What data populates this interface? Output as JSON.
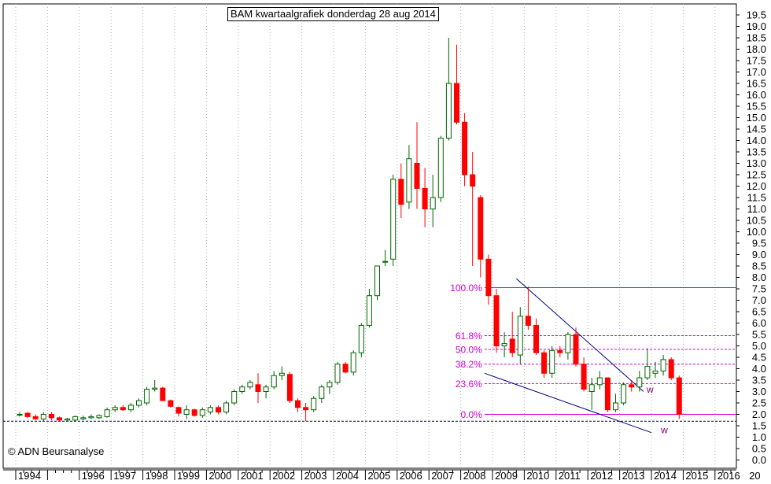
{
  "chart_data": {
    "type": "candlestick",
    "title": "BAM kwartaalgrafiek donderdag 28 aug 2014",
    "copyright": "© ADN Beursanalyse",
    "ylim": [
      0,
      19.5
    ],
    "y_ticks": [
      "0.0",
      "0.5",
      "1.0",
      "1.5",
      "2.0",
      "2.5",
      "3.0",
      "3.5",
      "4.0",
      "4.5",
      "5.0",
      "5.5",
      "6.0",
      "6.5",
      "7.0",
      "7.5",
      "8.0",
      "8.5",
      "9.0",
      "9.5",
      "10.0",
      "10.5",
      "11.0",
      "11.5",
      "12.0",
      "12.5",
      "13.0",
      "13.5",
      "14.0",
      "14.5",
      "15.0",
      "15.5",
      "16.0",
      "16.5",
      "17.0",
      "17.5",
      "18.0",
      "18.5",
      "19.0",
      "19.5"
    ],
    "x_ticks": [
      "1994",
      "1996",
      "1997",
      "1998",
      "1999",
      "2000",
      "2001",
      "2002",
      "2003",
      "2004",
      "2005",
      "2006",
      "2007",
      "2008",
      "2009",
      "2010",
      "2011",
      "2012",
      "2013",
      "2014",
      "2015",
      "2016",
      "20"
    ],
    "grid": true,
    "candle_colors": {
      "up": "#ffffff",
      "down": "#ff0000",
      "outline_up": "#006400",
      "outline_down": "#ff0000"
    },
    "candles": [
      {
        "t": 1994.0,
        "o": 2.0,
        "h": 2.1,
        "l": 1.9,
        "c": 2.0
      },
      {
        "t": 1994.25,
        "o": 2.05,
        "h": 2.1,
        "l": 1.85,
        "c": 1.9
      },
      {
        "t": 1994.5,
        "o": 1.9,
        "h": 2.0,
        "l": 1.75,
        "c": 1.8
      },
      {
        "t": 1994.75,
        "o": 1.8,
        "h": 2.1,
        "l": 1.7,
        "c": 2.0
      },
      {
        "t": 1995.0,
        "o": 2.0,
        "h": 2.1,
        "l": 1.75,
        "c": 1.85
      },
      {
        "t": 1995.25,
        "o": 1.85,
        "h": 1.9,
        "l": 1.7,
        "c": 1.75
      },
      {
        "t": 1995.5,
        "o": 1.75,
        "h": 1.85,
        "l": 1.7,
        "c": 1.8
      },
      {
        "t": 1995.75,
        "o": 1.75,
        "h": 1.95,
        "l": 1.7,
        "c": 1.9
      },
      {
        "t": 1996.0,
        "o": 1.8,
        "h": 1.95,
        "l": 1.75,
        "c": 1.85
      },
      {
        "t": 1996.25,
        "o": 1.85,
        "h": 2.0,
        "l": 1.8,
        "c": 1.9
      },
      {
        "t": 1996.5,
        "o": 1.85,
        "h": 2.0,
        "l": 1.8,
        "c": 1.95
      },
      {
        "t": 1996.75,
        "o": 1.9,
        "h": 2.3,
        "l": 1.85,
        "c": 2.2
      },
      {
        "t": 1997.0,
        "o": 2.2,
        "h": 2.4,
        "l": 2.1,
        "c": 2.3
      },
      {
        "t": 1997.25,
        "o": 2.3,
        "h": 2.4,
        "l": 2.15,
        "c": 2.2
      },
      {
        "t": 1997.5,
        "o": 2.2,
        "h": 2.5,
        "l": 2.1,
        "c": 2.4
      },
      {
        "t": 1997.75,
        "o": 2.4,
        "h": 2.7,
        "l": 2.3,
        "c": 2.6
      },
      {
        "t": 1998.0,
        "o": 2.5,
        "h": 3.2,
        "l": 2.4,
        "c": 3.1
      },
      {
        "t": 1998.25,
        "o": 3.1,
        "h": 3.5,
        "l": 3.0,
        "c": 3.15
      },
      {
        "t": 1998.5,
        "o": 3.15,
        "h": 3.2,
        "l": 2.6,
        "c": 2.6
      },
      {
        "t": 1998.75,
        "o": 2.6,
        "h": 2.65,
        "l": 2.3,
        "c": 2.35
      },
      {
        "t": 1999.0,
        "o": 2.3,
        "h": 2.35,
        "l": 1.9,
        "c": 2.05
      },
      {
        "t": 1999.25,
        "o": 2.0,
        "h": 2.4,
        "l": 1.8,
        "c": 2.2
      },
      {
        "t": 1999.5,
        "o": 2.2,
        "h": 2.25,
        "l": 1.9,
        "c": 1.95
      },
      {
        "t": 1999.75,
        "o": 1.95,
        "h": 2.3,
        "l": 1.85,
        "c": 2.2
      },
      {
        "t": 2000.0,
        "o": 2.1,
        "h": 2.4,
        "l": 2.0,
        "c": 2.3
      },
      {
        "t": 2000.25,
        "o": 2.3,
        "h": 2.4,
        "l": 2.0,
        "c": 2.1
      },
      {
        "t": 2000.5,
        "o": 2.1,
        "h": 2.6,
        "l": 2.0,
        "c": 2.5
      },
      {
        "t": 2000.75,
        "o": 2.5,
        "h": 3.1,
        "l": 2.4,
        "c": 3.0
      },
      {
        "t": 2001.0,
        "o": 3.0,
        "h": 3.3,
        "l": 2.9,
        "c": 3.2
      },
      {
        "t": 2001.25,
        "o": 3.2,
        "h": 3.5,
        "l": 3.1,
        "c": 3.4
      },
      {
        "t": 2001.5,
        "o": 3.3,
        "h": 3.8,
        "l": 2.5,
        "c": 3.0
      },
      {
        "t": 2001.75,
        "o": 3.0,
        "h": 3.3,
        "l": 2.7,
        "c": 3.2
      },
      {
        "t": 2002.0,
        "o": 3.2,
        "h": 3.9,
        "l": 3.1,
        "c": 3.7
      },
      {
        "t": 2002.25,
        "o": 3.7,
        "h": 4.1,
        "l": 3.5,
        "c": 3.8
      },
      {
        "t": 2002.5,
        "o": 3.75,
        "h": 3.85,
        "l": 2.5,
        "c": 2.6
      },
      {
        "t": 2002.75,
        "o": 2.6,
        "h": 2.7,
        "l": 2.1,
        "c": 2.3
      },
      {
        "t": 2003.0,
        "o": 2.3,
        "h": 2.5,
        "l": 1.7,
        "c": 2.2
      },
      {
        "t": 2003.25,
        "o": 2.2,
        "h": 2.8,
        "l": 2.1,
        "c": 2.7
      },
      {
        "t": 2003.5,
        "o": 2.7,
        "h": 3.3,
        "l": 2.5,
        "c": 3.2
      },
      {
        "t": 2003.75,
        "o": 3.2,
        "h": 3.5,
        "l": 2.9,
        "c": 3.4
      },
      {
        "t": 2004.0,
        "o": 3.4,
        "h": 4.3,
        "l": 3.3,
        "c": 4.2
      },
      {
        "t": 2004.25,
        "o": 4.2,
        "h": 4.3,
        "l": 3.8,
        "c": 3.85
      },
      {
        "t": 2004.5,
        "o": 3.85,
        "h": 4.8,
        "l": 3.7,
        "c": 4.7
      },
      {
        "t": 2004.75,
        "o": 4.7,
        "h": 6.0,
        "l": 4.5,
        "c": 5.9
      },
      {
        "t": 2005.0,
        "o": 5.9,
        "h": 7.5,
        "l": 5.8,
        "c": 7.2
      },
      {
        "t": 2005.25,
        "o": 7.2,
        "h": 8.5,
        "l": 7.0,
        "c": 8.5
      },
      {
        "t": 2005.5,
        "o": 8.7,
        "h": 9.2,
        "l": 8.5,
        "c": 8.7
      },
      {
        "t": 2005.75,
        "o": 8.8,
        "h": 12.5,
        "l": 8.5,
        "c": 12.3
      },
      {
        "t": 2006.0,
        "o": 12.3,
        "h": 13.0,
        "l": 10.6,
        "c": 11.2
      },
      {
        "t": 2006.25,
        "o": 11.3,
        "h": 13.8,
        "l": 11.0,
        "c": 13.2
      },
      {
        "t": 2006.5,
        "o": 13.0,
        "h": 14.8,
        "l": 11.0,
        "c": 11.9
      },
      {
        "t": 2006.75,
        "o": 11.9,
        "h": 12.8,
        "l": 10.2,
        "c": 11.0
      },
      {
        "t": 2007.0,
        "o": 11.0,
        "h": 12.5,
        "l": 10.2,
        "c": 11.5
      },
      {
        "t": 2007.25,
        "o": 11.5,
        "h": 14.2,
        "l": 11.3,
        "c": 14.1
      },
      {
        "t": 2007.5,
        "o": 14.1,
        "h": 18.5,
        "l": 14.0,
        "c": 16.5
      },
      {
        "t": 2007.75,
        "o": 16.5,
        "h": 18.2,
        "l": 14.7,
        "c": 14.8
      },
      {
        "t": 2008.0,
        "o": 14.8,
        "h": 15.2,
        "l": 12.0,
        "c": 12.5
      },
      {
        "t": 2008.25,
        "o": 12.5,
        "h": 13.5,
        "l": 8.5,
        "c": 12.0
      },
      {
        "t": 2008.5,
        "o": 11.5,
        "h": 11.6,
        "l": 8.0,
        "c": 8.8
      },
      {
        "t": 2008.75,
        "o": 8.8,
        "h": 9.0,
        "l": 6.8,
        "c": 7.2
      },
      {
        "t": 2009.0,
        "o": 7.2,
        "h": 7.5,
        "l": 4.7,
        "c": 5.0
      },
      {
        "t": 2009.25,
        "o": 5.0,
        "h": 5.6,
        "l": 4.5,
        "c": 5.1
      },
      {
        "t": 2009.5,
        "o": 5.3,
        "h": 6.5,
        "l": 4.5,
        "c": 4.7
      },
      {
        "t": 2009.75,
        "o": 4.6,
        "h": 6.7,
        "l": 4.2,
        "c": 6.3
      },
      {
        "t": 2010.0,
        "o": 6.3,
        "h": 7.6,
        "l": 5.7,
        "c": 5.9
      },
      {
        "t": 2010.25,
        "o": 5.9,
        "h": 6.2,
        "l": 4.6,
        "c": 4.7
      },
      {
        "t": 2010.5,
        "o": 4.7,
        "h": 4.8,
        "l": 3.6,
        "c": 3.8
      },
      {
        "t": 2010.75,
        "o": 3.8,
        "h": 5.0,
        "l": 3.6,
        "c": 4.8
      },
      {
        "t": 2011.0,
        "o": 4.8,
        "h": 5.0,
        "l": 4.5,
        "c": 4.7
      },
      {
        "t": 2011.25,
        "o": 4.7,
        "h": 5.6,
        "l": 4.4,
        "c": 5.5
      },
      {
        "t": 2011.5,
        "o": 5.5,
        "h": 5.8,
        "l": 4.1,
        "c": 4.2
      },
      {
        "t": 2011.75,
        "o": 4.2,
        "h": 4.5,
        "l": 3.0,
        "c": 3.1
      },
      {
        "t": 2012.0,
        "o": 3.0,
        "h": 3.6,
        "l": 2.2,
        "c": 3.3
      },
      {
        "t": 2012.25,
        "o": 3.3,
        "h": 3.9,
        "l": 3.1,
        "c": 3.6
      },
      {
        "t": 2012.5,
        "o": 3.6,
        "h": 3.6,
        "l": 2.1,
        "c": 2.2
      },
      {
        "t": 2012.75,
        "o": 2.2,
        "h": 2.9,
        "l": 2.1,
        "c": 2.5
      },
      {
        "t": 2013.0,
        "o": 2.5,
        "h": 3.4,
        "l": 2.4,
        "c": 3.3
      },
      {
        "t": 2013.25,
        "o": 3.3,
        "h": 3.5,
        "l": 3.0,
        "c": 3.2
      },
      {
        "t": 2013.5,
        "o": 3.2,
        "h": 3.9,
        "l": 3.0,
        "c": 3.6
      },
      {
        "t": 2013.75,
        "o": 3.6,
        "h": 4.9,
        "l": 3.5,
        "c": 4.1
      },
      {
        "t": 2014.0,
        "o": 3.8,
        "h": 4.3,
        "l": 3.6,
        "c": 3.9
      },
      {
        "t": 2014.25,
        "o": 3.9,
        "h": 4.6,
        "l": 3.7,
        "c": 4.4
      },
      {
        "t": 2014.5,
        "o": 4.4,
        "h": 4.5,
        "l": 3.5,
        "c": 3.6
      },
      {
        "t": 2014.75,
        "o": 3.6,
        "h": 3.7,
        "l": 1.8,
        "c": 2.0
      }
    ],
    "fib_levels": [
      {
        "label": "100.0%",
        "value": 7.55,
        "style": "solid"
      },
      {
        "label": "61.8%",
        "value": 5.45,
        "style": "dashed"
      },
      {
        "label": "50.0%",
        "value": 4.85,
        "style": "dashed"
      },
      {
        "label": "38.2%",
        "value": 4.2,
        "style": "dashed"
      },
      {
        "label": "23.6%",
        "value": 3.35,
        "style": "dashed"
      },
      {
        "label": "0.0%",
        "value": 2.0,
        "style": "solid"
      }
    ],
    "fib_color": "#d000d0",
    "support_line": {
      "value": 1.7,
      "color": "#000080",
      "style": "dashed"
    },
    "trendlines": [
      {
        "from": [
          2009.75,
          7.95
        ],
        "to": [
          2013.75,
          3.0
        ],
        "color": "#000080"
      },
      {
        "from": [
          2008.75,
          3.8
        ],
        "to": [
          2014.0,
          1.2
        ],
        "color": "#000080"
      }
    ],
    "annotations": [
      {
        "text": "w",
        "x": 2013.85,
        "y": 2.95,
        "color": "#800080"
      },
      {
        "text": "w",
        "x": 2014.3,
        "y": 1.18,
        "color": "#800080"
      }
    ]
  }
}
